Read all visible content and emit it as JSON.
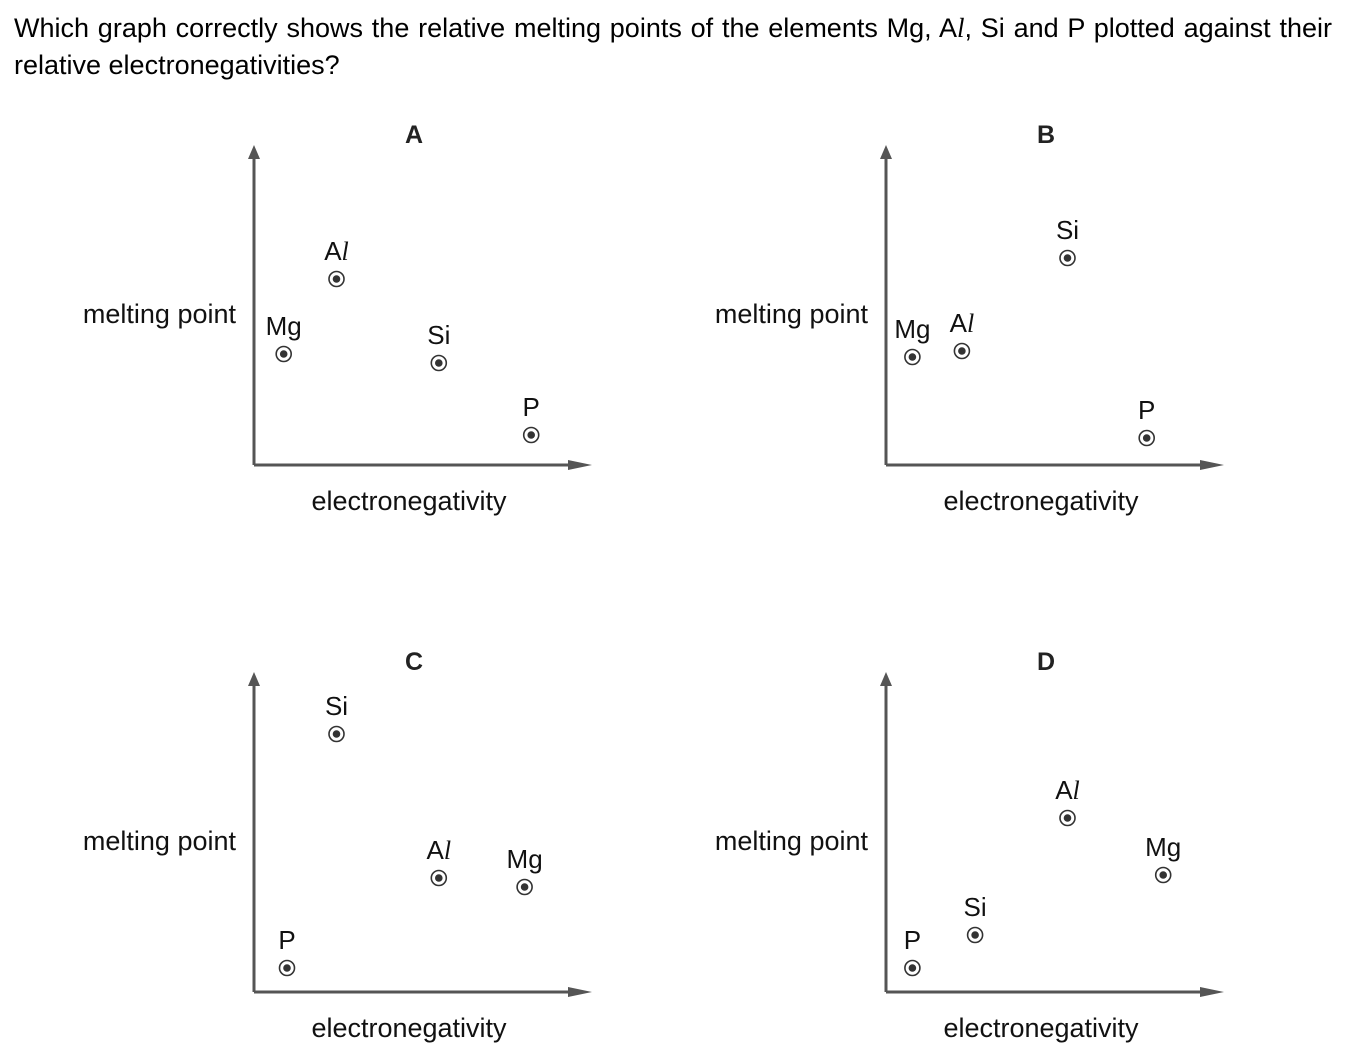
{
  "question": {
    "text_before": "Which graph correctly shows the relative melting points of the elements Mg, A",
    "text_l": "l",
    "text_after": ", Si and P plotted against their relative electronegativities?"
  },
  "chart_data": [
    {
      "type": "scatter",
      "title": "A",
      "xlabel": "electronegativity",
      "ylabel": "melting point",
      "xlim": [
        0,
        10
      ],
      "ylim": [
        0,
        10
      ],
      "grid": false,
      "points": [
        {
          "label_main": "Mg",
          "label_ital": "",
          "x": 0.9,
          "y": 3.7
        },
        {
          "label_main": "A",
          "label_ital": "l",
          "x": 2.5,
          "y": 6.2
        },
        {
          "label_main": "Si",
          "label_ital": "",
          "x": 5.6,
          "y": 3.4
        },
        {
          "label_main": "P",
          "label_ital": "",
          "x": 8.4,
          "y": 1.0
        }
      ]
    },
    {
      "type": "scatter",
      "title": "B",
      "xlabel": "electronegativity",
      "ylabel": "melting point",
      "xlim": [
        0,
        10
      ],
      "ylim": [
        0,
        10
      ],
      "grid": false,
      "points": [
        {
          "label_main": "Mg",
          "label_ital": "",
          "x": 0.8,
          "y": 3.6
        },
        {
          "label_main": "A",
          "label_ital": "l",
          "x": 2.3,
          "y": 3.8
        },
        {
          "label_main": "Si",
          "label_ital": "",
          "x": 5.5,
          "y": 6.9
        },
        {
          "label_main": "P",
          "label_ital": "",
          "x": 7.9,
          "y": 0.9
        }
      ]
    },
    {
      "type": "scatter",
      "title": "C",
      "xlabel": "electronegativity",
      "ylabel": "melting point",
      "xlim": [
        0,
        10
      ],
      "ylim": [
        0,
        10
      ],
      "grid": false,
      "points": [
        {
          "label_main": "Si",
          "label_ital": "",
          "x": 2.5,
          "y": 8.6
        },
        {
          "label_main": "A",
          "label_ital": "l",
          "x": 5.6,
          "y": 3.8
        },
        {
          "label_main": "Mg",
          "label_ital": "",
          "x": 8.2,
          "y": 3.5
        },
        {
          "label_main": "P",
          "label_ital": "",
          "x": 1.0,
          "y": 0.8
        }
      ]
    },
    {
      "type": "scatter",
      "title": "D",
      "xlabel": "electronegativity",
      "ylabel": "melting point",
      "xlim": [
        0,
        10
      ],
      "ylim": [
        0,
        10
      ],
      "grid": false,
      "points": [
        {
          "label_main": "A",
          "label_ital": "l",
          "x": 5.5,
          "y": 5.8
        },
        {
          "label_main": "Mg",
          "label_ital": "",
          "x": 8.4,
          "y": 3.9
        },
        {
          "label_main": "Si",
          "label_ital": "",
          "x": 2.7,
          "y": 1.9
        },
        {
          "label_main": "P",
          "label_ital": "",
          "x": 0.8,
          "y": 0.8
        }
      ]
    }
  ]
}
